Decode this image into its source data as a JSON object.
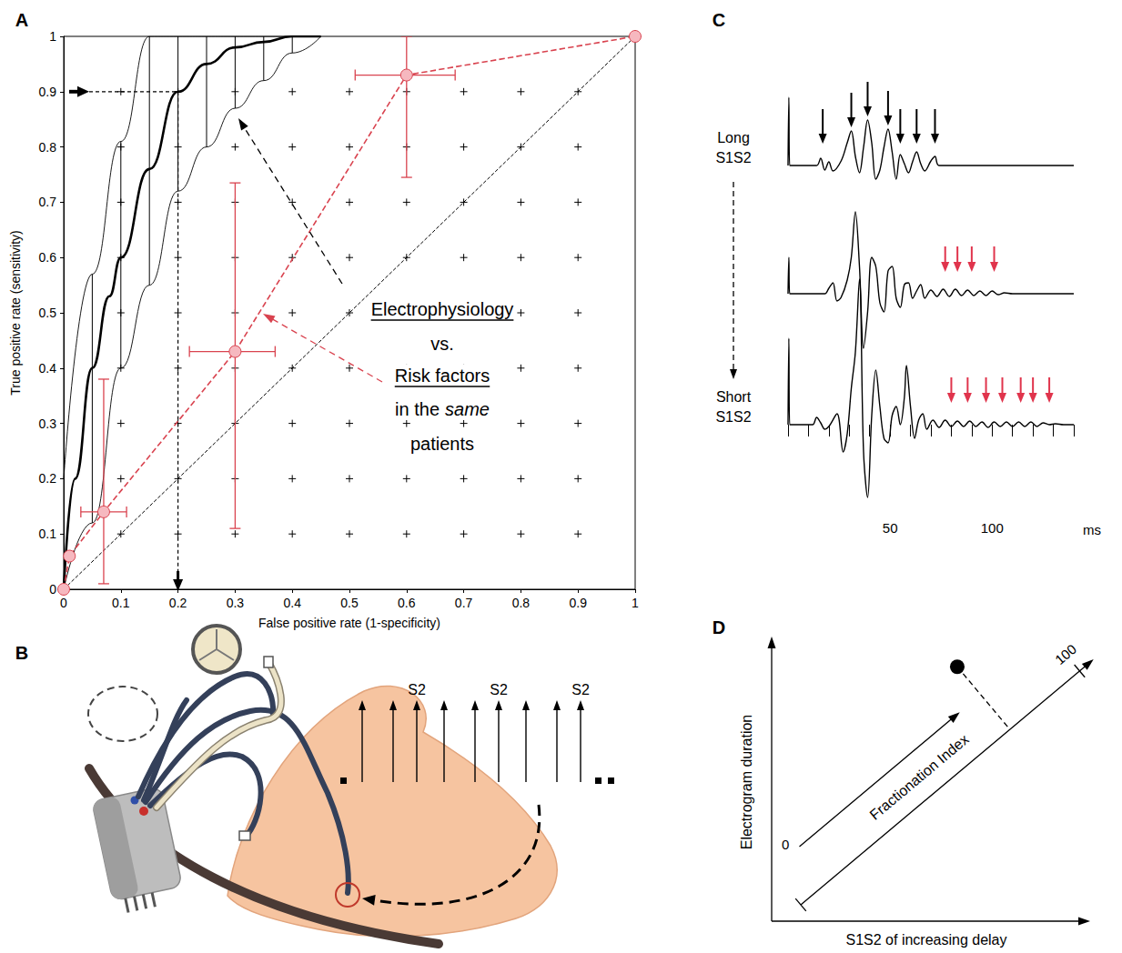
{
  "chart_data": [
    {
      "panel": "A",
      "type": "line",
      "x_label": "False positive rate (1-specificity)",
      "y_label": "True positive rate (sensitivity)",
      "xlim": [
        0,
        1
      ],
      "ylim": [
        0,
        1
      ],
      "xticks": [
        0,
        0.1,
        0.2,
        0.3,
        0.4,
        0.5,
        0.6,
        0.7,
        0.8,
        0.9,
        1
      ],
      "yticks": [
        0,
        0.1,
        0.2,
        0.3,
        0.4,
        0.5,
        0.6,
        0.7,
        0.8,
        0.9,
        1
      ],
      "grid": true,
      "series": [
        {
          "color": "#000000",
          "line_style": "solid",
          "x": [
            0,
            0.02,
            0.05,
            0.08,
            0.1,
            0.15,
            0.2,
            0.25,
            0.3,
            0.35,
            0.4,
            0.45
          ],
          "values": [
            0,
            0.2,
            0.4,
            0.53,
            0.6,
            0.76,
            0.9,
            0.95,
            0.98,
            0.99,
            1,
            1
          ],
          "band": {
            "x": [
              0,
              0.05,
              0.1,
              0.15,
              0.2,
              0.25,
              0.3,
              0.35,
              0.4,
              0.45
            ],
            "lower": [
              0,
              0.12,
              0.4,
              0.55,
              0.72,
              0.8,
              0.87,
              0.92,
              0.97,
              1
            ],
            "upper": [
              0.2,
              0.57,
              0.81,
              1,
              1,
              1,
              1,
              1,
              1,
              1
            ]
          }
        },
        {
          "color": "#d9434f",
          "line_style": "dashed",
          "marker": "circle",
          "x": [
            0,
            0.01,
            0.07,
            0.3,
            0.6,
            1
          ],
          "values": [
            0,
            0.06,
            0.14,
            0.43,
            0.93,
            1
          ],
          "x_error": [
            null,
            null,
            [
              0.03,
              0.11
            ],
            [
              0.22,
              0.37
            ],
            [
              0.51,
              0.685
            ],
            null
          ],
          "y_error": [
            null,
            null,
            [
              0.01,
              0.38
            ],
            [
              0.11,
              0.735
            ],
            [
              0.745,
              1
            ],
            null
          ]
        },
        {
          "color": "#000000",
          "line_style": "dashed",
          "x": [
            0,
            1
          ],
          "values": [
            0,
            1
          ]
        }
      ],
      "highlight": {
        "x": 0.2,
        "y": 0.9
      },
      "annotation": [
        "Electrophysiology",
        "vs.",
        "Risk factors",
        "in the",
        "same",
        "patients"
      ]
    },
    {
      "panel": "C",
      "type": "waveform",
      "x_label": "ms",
      "xlim": [
        0,
        140
      ],
      "ylim": [
        -9,
        17
      ],
      "xticks": [
        50,
        100
      ],
      "xminorticks": [
        0,
        10,
        20,
        30,
        40,
        60,
        70,
        80,
        90,
        110,
        120,
        130,
        140
      ],
      "tick_labels": "x",
      "series": [
        {
          "name": "Long S1S2",
          "color": "#000000",
          "x": [
            0,
            0.4,
            0.8,
            14,
            16,
            18,
            20,
            22,
            26,
            29,
            31,
            33,
            35,
            37,
            39,
            41,
            43,
            45,
            47,
            49,
            51,
            53,
            55,
            57,
            59,
            61,
            63,
            65,
            67,
            70,
            72,
            74,
            140
          ],
          "values": [
            0,
            7.5,
            0,
            0,
            0.8,
            -0.5,
            0.4,
            -0.6,
            0.5,
            2.5,
            3.8,
            1.0,
            -0.8,
            2.0,
            5.0,
            2.5,
            -1.5,
            -0.5,
            2.0,
            4.0,
            1.5,
            -1.5,
            1.2,
            0.2,
            -0.8,
            0.4,
            1.5,
            0.2,
            -0.6,
            0.5,
            1.0,
            0,
            0
          ],
          "arrows": {
            "x": [
              17,
              31,
              39,
              49,
              55,
              63,
              72
            ],
            "color": "#000000"
          }
        },
        {
          "color": "#000000",
          "x": [
            0,
            0.4,
            0.8,
            18,
            20,
            22,
            24,
            26,
            29,
            31,
            33,
            35,
            37,
            39,
            41,
            43,
            45,
            47,
            49,
            51,
            53,
            55,
            57,
            59,
            61,
            63,
            65,
            67,
            70,
            73,
            76,
            79,
            82,
            85,
            88,
            91,
            94,
            97,
            100,
            103,
            106,
            110,
            140
          ],
          "values": [
            0,
            4,
            0,
            0,
            0.6,
            1.2,
            -0.8,
            -0.4,
            1.5,
            4.0,
            9.0,
            3.0,
            -6.0,
            -2.0,
            4.0,
            3.0,
            -1.0,
            -2.0,
            2.5,
            3.0,
            -0.5,
            -1.5,
            1.0,
            1.2,
            -0.5,
            0.3,
            1.0,
            -0.5,
            0.4,
            -0.3,
            0.5,
            -0.3,
            0.5,
            -0.2,
            0.4,
            -0.2,
            0.3,
            -0.2,
            0.3,
            -0.1,
            0.1,
            0,
            0
          ],
          "arrows": {
            "x": [
              77,
              83,
              90,
              101
            ],
            "color": "#e0344c"
          }
        },
        {
          "name": "Short S1S2",
          "color": "#000000",
          "x": [
            0,
            0.4,
            0.8,
            12,
            14,
            16,
            18,
            20,
            24,
            27,
            29,
            31,
            33,
            35,
            37,
            39,
            41,
            43,
            45,
            47,
            49,
            51,
            53,
            55,
            57,
            58,
            60,
            62,
            64,
            66,
            68,
            71,
            74,
            77,
            80,
            83,
            86,
            89,
            92,
            95,
            98,
            101,
            104,
            107,
            110,
            113,
            116,
            119,
            122,
            125,
            128,
            131,
            135,
            140
          ],
          "values": [
            0,
            9.5,
            0,
            0,
            0.8,
            0.2,
            -0.5,
            -0.2,
            1.2,
            -3.0,
            -1.0,
            4.0,
            8.0,
            16.0,
            -3.0,
            -8.0,
            1.0,
            6.0,
            2.0,
            -1.5,
            -2.0,
            1.0,
            2.0,
            0,
            3.0,
            6.5,
            2.0,
            -1.5,
            0.5,
            1.2,
            -0.5,
            0.5,
            -0.3,
            0.5,
            -0.2,
            0.4,
            -0.2,
            0.4,
            -0.2,
            0.3,
            -0.3,
            0.3,
            -0.2,
            0.3,
            -0.2,
            0.3,
            -0.2,
            0.3,
            -0.2,
            0.2,
            0,
            0.1,
            0,
            0
          ],
          "arrows": {
            "x": [
              80,
              88,
              97,
              105,
              114,
              120,
              128
            ],
            "color": "#e0344c"
          }
        }
      ]
    }
  ],
  "diagrams": [
    {
      "panel": "B",
      "pulses": [
        null,
        null,
        "S2",
        null,
        null,
        "S2",
        null,
        null,
        "S2"
      ]
    },
    {
      "panel": "D",
      "x_label": "S1S2 of increasing delay",
      "y_label": "Electrogram duration",
      "index_label": "Fractionation Index",
      "index_range": [
        0,
        100
      ]
    }
  ]
}
